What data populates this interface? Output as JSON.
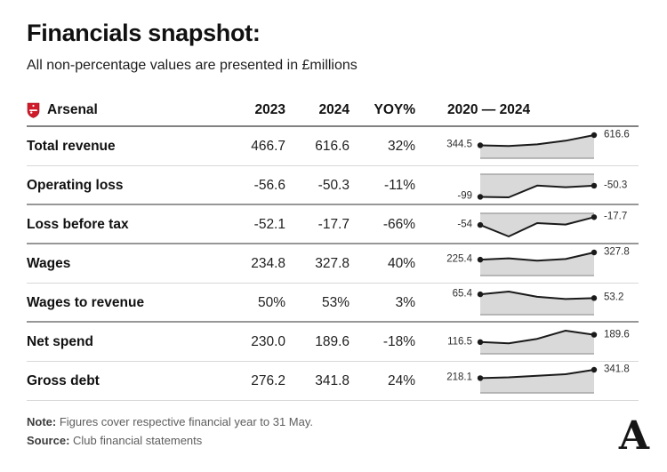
{
  "header": {
    "title": "Financials snapshot:",
    "subtitle": "All non-percentage values are presented in £millions"
  },
  "table": {
    "club": "Arsenal",
    "columns": [
      "2023",
      "2024",
      "YOY%",
      "2020 — 2024"
    ],
    "rows": [
      {
        "label": "Total revenue",
        "v2023": "466.7",
        "v2024": "616.6",
        "yoy": "32%",
        "spark_first": "344.5",
        "spark_last": "616.6",
        "separator": "light"
      },
      {
        "label": "Operating loss",
        "v2023": "-56.6",
        "v2024": "-50.3",
        "yoy": "-11%",
        "spark_first": "-99",
        "spark_last": "-50.3",
        "separator": "dark"
      },
      {
        "label": "Loss before tax",
        "v2023": "-52.1",
        "v2024": "-17.7",
        "yoy": "-66%",
        "spark_first": "-54",
        "spark_last": "-17.7",
        "separator": "dark"
      },
      {
        "label": "Wages",
        "v2023": "234.8",
        "v2024": "327.8",
        "yoy": "40%",
        "spark_first": "225.4",
        "spark_last": "327.8",
        "separator": "light"
      },
      {
        "label": "Wages to revenue",
        "v2023": "50%",
        "v2024": "53%",
        "yoy": "3%",
        "spark_first": "65.4",
        "spark_last": "53.2",
        "separator": "dark"
      },
      {
        "label": "Net spend",
        "v2023": "230.0",
        "v2024": "189.6",
        "yoy": "-18%",
        "spark_first": "116.5",
        "spark_last": "189.6",
        "separator": "light"
      },
      {
        "label": "Gross debt",
        "v2023": "276.2",
        "v2024": "341.8",
        "yoy": "24%",
        "spark_first": "218.1",
        "spark_last": "341.8",
        "separator": "light"
      }
    ]
  },
  "chart_data": {
    "type": "table",
    "title": "Financials snapshot:",
    "subtitle": "All non-percentage values are presented in £millions",
    "club": "Arsenal",
    "columns": [
      "2023",
      "2024",
      "YOY%",
      "2020 — 2024"
    ],
    "sparkline_type": "area",
    "sparkline_years": [
      2020,
      2021,
      2022,
      2023,
      2024
    ],
    "sparkline_baseline": 0,
    "rows": [
      {
        "metric": "Total revenue",
        "val_2023": 466.7,
        "val_2024": 616.6,
        "yoy_pct": 32,
        "sparkline": [
          344.5,
          328.0,
          369.6,
          466.7,
          616.6
        ]
      },
      {
        "metric": "Operating loss",
        "val_2023": -56.6,
        "val_2024": -50.3,
        "yoy_pct": -11,
        "sparkline": [
          -99,
          -101.0,
          -49.8,
          -56.6,
          -50.3
        ]
      },
      {
        "metric": "Loss before tax",
        "val_2023": -52.1,
        "val_2024": -17.7,
        "yoy_pct": -66,
        "sparkline": [
          -54,
          -107.3,
          -45.5,
          -52.1,
          -17.7
        ]
      },
      {
        "metric": "Wages",
        "val_2023": 234.8,
        "val_2024": 327.8,
        "yoy_pct": 40,
        "sparkline": [
          225.4,
          244.4,
          212.3,
          234.8,
          327.8
        ]
      },
      {
        "metric": "Wages to revenue",
        "val_2023": 50,
        "val_2024": 53,
        "yoy_pct": 3,
        "sparkline": [
          65.4,
          74.2,
          57.5,
          50.3,
          53.2
        ]
      },
      {
        "metric": "Net spend",
        "val_2023": 230.0,
        "val_2024": 189.6,
        "yoy_pct": -18,
        "sparkline": [
          116.5,
          104.0,
          149.0,
          230.0,
          189.6
        ]
      },
      {
        "metric": "Gross debt",
        "val_2023": 276.2,
        "val_2024": 341.8,
        "yoy_pct": 24,
        "sparkline": [
          218.1,
          230.0,
          252.0,
          276.2,
          341.8
        ]
      }
    ]
  },
  "footer": {
    "note_label": "Note:",
    "note": "Figures cover respective financial year to 31 May.",
    "source_label": "Source:",
    "source": "Club financial statements"
  },
  "branding": {
    "logo_letter": "A",
    "crest_name": "arsenal-crest"
  },
  "colors": {
    "spark_line": "#1a1a1a",
    "spark_fill": "#d9d9d9",
    "spark_baseline": "#a6a6a6",
    "separator_light": "#d7d7d7",
    "separator_dark": "#979797",
    "crest_red": "#d01c2a"
  }
}
